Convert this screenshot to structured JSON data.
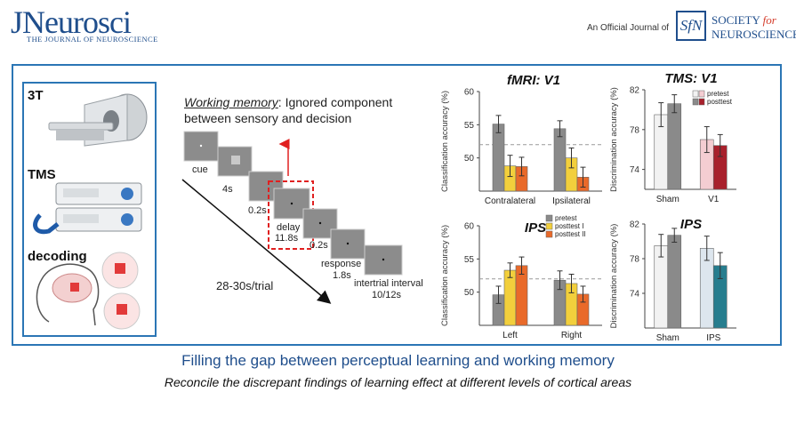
{
  "header": {
    "journal_logo": "JNeurosci",
    "journal_subtitle": "THE JOURNAL OF NEUROSCIENCE",
    "official_text": "An Official Journal of",
    "sfn_mark": "SfN",
    "sfn_line1_a": "SOCIETY",
    "sfn_line1_b": "for",
    "sfn_line2": "NEUROSCIENCE"
  },
  "methods": {
    "labels": [
      "3T",
      "TMS",
      "decoding"
    ]
  },
  "task": {
    "heading_underlined": "Working memory",
    "heading_rest": ": Ignored component",
    "heading_line2": "between sensory and decision",
    "screens": [
      "cue",
      "4s",
      "0.2s",
      "delay",
      "11.8s",
      "0.2s",
      "response",
      "1.8s",
      "intertrial interval",
      "10/12s"
    ],
    "trial_length": "28-30s/trial"
  },
  "chart_data": [
    {
      "type": "bar",
      "title": "fMRI: V1",
      "ylabel": "Classification accuracy (%)",
      "ylim": [
        45,
        60
      ],
      "yticks": [
        50,
        55,
        60
      ],
      "chance": 52,
      "categories": [
        "Contralateral",
        "Ipsilateral"
      ],
      "series": [
        {
          "name": "pretest",
          "color": "#8a8a8a",
          "values": [
            55.1,
            54.4
          ],
          "err": [
            1.3,
            1.2
          ]
        },
        {
          "name": "posttest I",
          "color": "#f2cf3c",
          "values": [
            48.8,
            50.0
          ],
          "err": [
            1.6,
            1.5
          ]
        },
        {
          "name": "posttest II",
          "color": "#e96a2a",
          "values": [
            48.7,
            47.1
          ],
          "err": [
            1.4,
            1.5
          ]
        }
      ]
    },
    {
      "type": "bar",
      "title": "IPS",
      "ylabel": "Classification accuracy (%)",
      "ylim": [
        45,
        60
      ],
      "yticks": [
        50,
        55,
        60
      ],
      "chance": 52,
      "categories": [
        "Left",
        "Right"
      ],
      "legend": [
        "pretest",
        "posttest I",
        "posttest II"
      ],
      "series": [
        {
          "name": "pretest",
          "color": "#8a8a8a",
          "values": [
            49.6,
            51.8
          ],
          "err": [
            1.3,
            1.4
          ]
        },
        {
          "name": "posttest I",
          "color": "#f2cf3c",
          "values": [
            53.3,
            51.3
          ],
          "err": [
            1.1,
            1.4
          ]
        },
        {
          "name": "posttest II",
          "color": "#e96a2a",
          "values": [
            54.0,
            49.7
          ],
          "err": [
            1.3,
            1.2
          ]
        }
      ]
    },
    {
      "type": "bar",
      "title": "TMS: V1",
      "ylabel": "Discrimination accuracy (%)",
      "ylim": [
        72,
        82
      ],
      "yticks": [
        74,
        78,
        82
      ],
      "categories": [
        "Sham",
        "V1"
      ],
      "legend": [
        "pretest",
        "posttest"
      ],
      "series": [
        {
          "name": "pretest",
          "colors": [
            "#f2f2f2",
            "#f4cdd2"
          ],
          "values": [
            79.5,
            77.0
          ],
          "err": [
            1.2,
            1.3
          ]
        },
        {
          "name": "posttest",
          "colors": [
            "#8a8a8a",
            "#a8202c"
          ],
          "values": [
            80.6,
            76.4
          ],
          "err": [
            0.9,
            1.1
          ]
        }
      ]
    },
    {
      "type": "bar",
      "title": "IPS",
      "ylabel": "Discrimination accuracy (%)",
      "ylim": [
        70,
        82
      ],
      "yticks": [
        74,
        78,
        82
      ],
      "categories": [
        "Sham",
        "IPS"
      ],
      "series": [
        {
          "name": "pretest",
          "colors": [
            "#f2f2f2",
            "#dde6ee"
          ],
          "values": [
            79.5,
            79.2
          ],
          "err": [
            1.3,
            1.4
          ]
        },
        {
          "name": "posttest",
          "colors": [
            "#8a8a8a",
            "#267d8e"
          ],
          "values": [
            80.7,
            77.2
          ],
          "err": [
            0.8,
            1.5
          ]
        }
      ]
    }
  ],
  "footer": {
    "title": "Filling the gap between perceptual learning and working memory",
    "subtitle": "Reconcile the discrepant findings of learning effect at different levels of cortical areas"
  }
}
